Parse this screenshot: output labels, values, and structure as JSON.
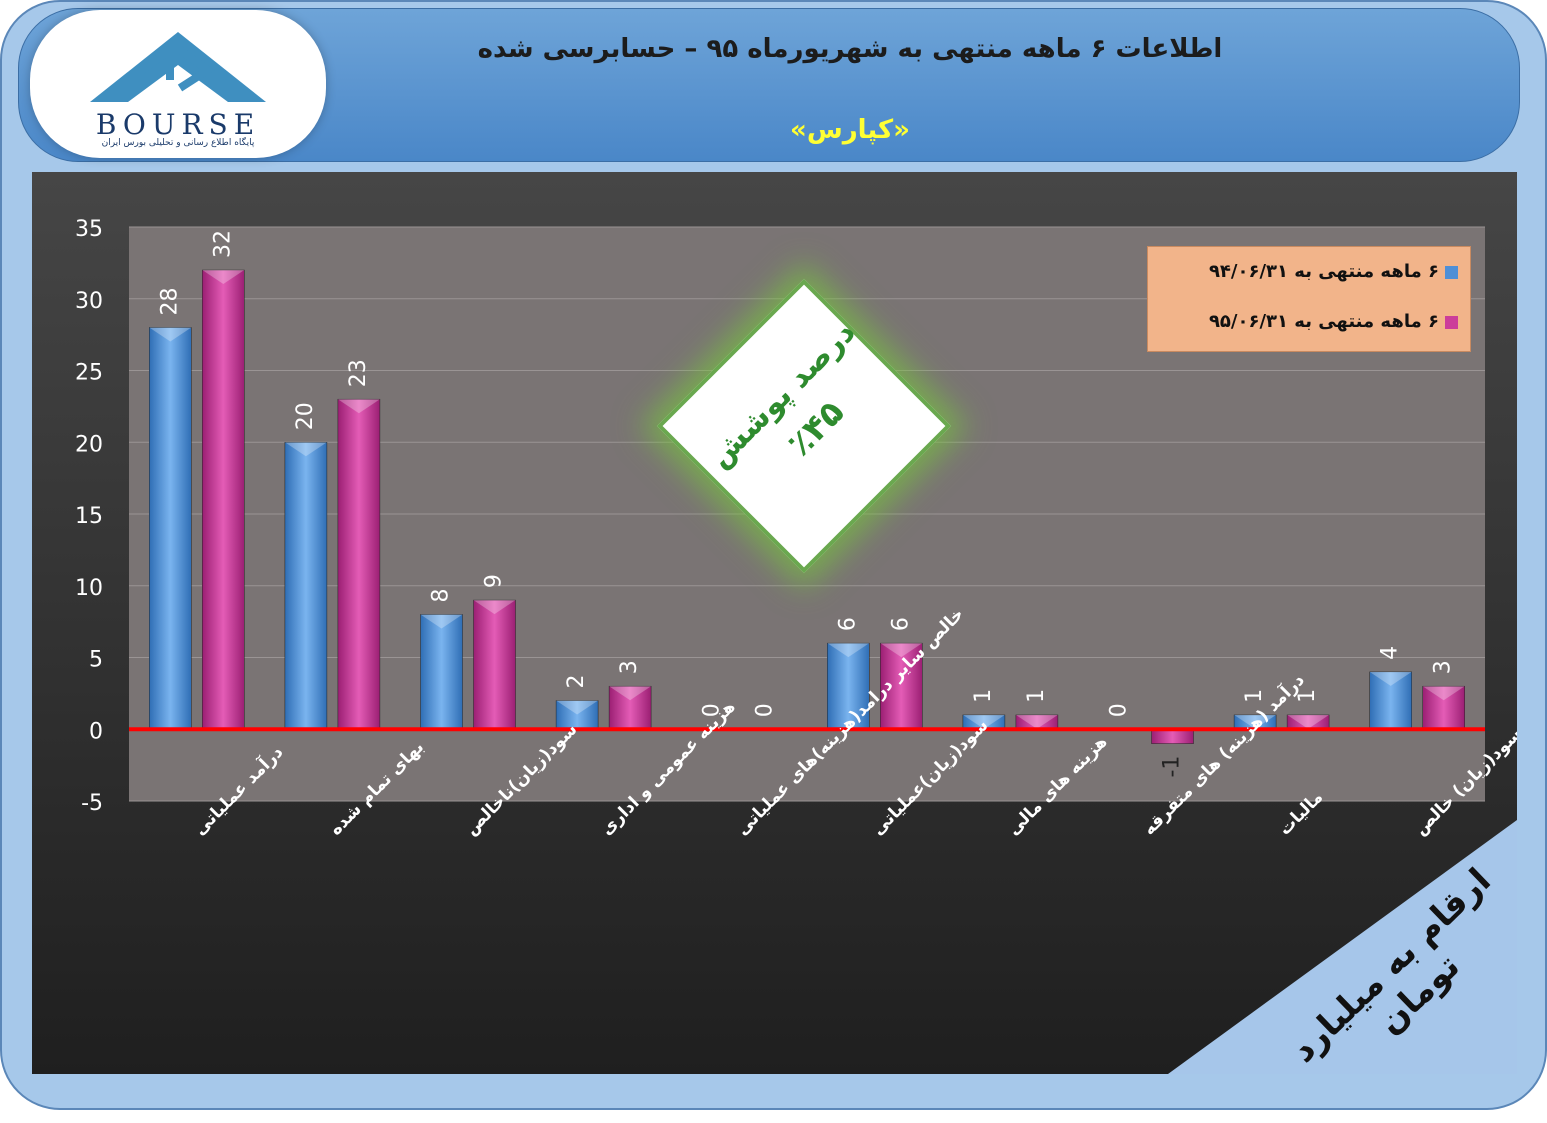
{
  "header": {
    "title": "اطلاعات ۶  ماهه منتهی به شهریورماه ۹۵ – حسابرسی شده",
    "company": "«کپارس»",
    "logo_text": "BOURSE",
    "logo_subtitle": "پایگاه اطلاع رسانی و تحلیلی بورس ایران"
  },
  "callout": {
    "line1": "درصد پوشش",
    "line2": "٪۴۵"
  },
  "corner_note": "ارقام به میلیارد تومان",
  "colors": {
    "series1": "#4f8fd6",
    "series2": "#cc3d9a",
    "zero_line": "#ff0000",
    "callout_border": "#6aa84f"
  },
  "chart_data": {
    "type": "bar",
    "categories": [
      "درآمد عملیاتی",
      "بهای تمام شده",
      "سود(زیان)ناخالص",
      "هزینه عمومی و اداری",
      "خالص سایر درامد(هزینه)های عملیاتی",
      "سود(زیان)عملیاتی",
      "هزینه های مالی",
      "درآمد (هزینه) های متفرقه",
      "مالیات",
      "سود(زیان) خالص"
    ],
    "series": [
      {
        "name": "۶ ماهه منتهی به ۹۴/۰۶/۳۱",
        "values": [
          28,
          20,
          8,
          2,
          0,
          6,
          1,
          0,
          1,
          4
        ]
      },
      {
        "name": "۶ ماهه منتهی به ۹۵/۰۶/۳۱",
        "values": [
          32,
          23,
          9,
          3,
          0,
          6,
          1,
          -1,
          1,
          3
        ]
      }
    ],
    "ylim": [
      -5,
      35
    ],
    "yticks": [
      -5,
      0,
      5,
      10,
      15,
      20,
      25,
      30,
      35
    ],
    "legend": "top-right",
    "grid": true
  }
}
